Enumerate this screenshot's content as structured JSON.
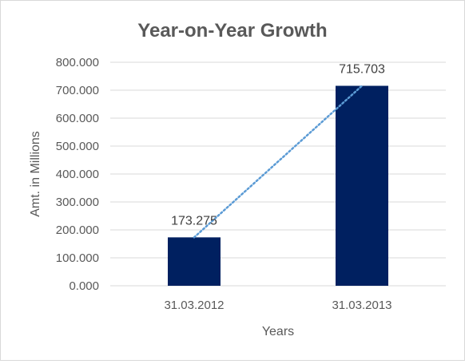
{
  "chart_data": {
    "type": "bar",
    "title": "Year-on-Year Growth",
    "xlabel": "Years",
    "ylabel": "Amt. in Millions",
    "categories": [
      "31.03.2012",
      "31.03.2013"
    ],
    "values": [
      173.275,
      715.703
    ],
    "data_labels": [
      "173.275",
      "715.703"
    ],
    "ylim": [
      0,
      800
    ],
    "yticks": [
      0,
      100,
      200,
      300,
      400,
      500,
      600,
      700,
      800
    ],
    "ytick_labels": [
      "0.000",
      "100.000",
      "200.000",
      "300.000",
      "400.000",
      "500.000",
      "600.000",
      "700.000",
      "800.000"
    ],
    "grid": true,
    "legend": "none",
    "trendline": "linear",
    "colors": {
      "bar": "#002060",
      "trendline": "#5b9bd5",
      "grid": "#d9d9d9",
      "text": "#595959"
    }
  }
}
